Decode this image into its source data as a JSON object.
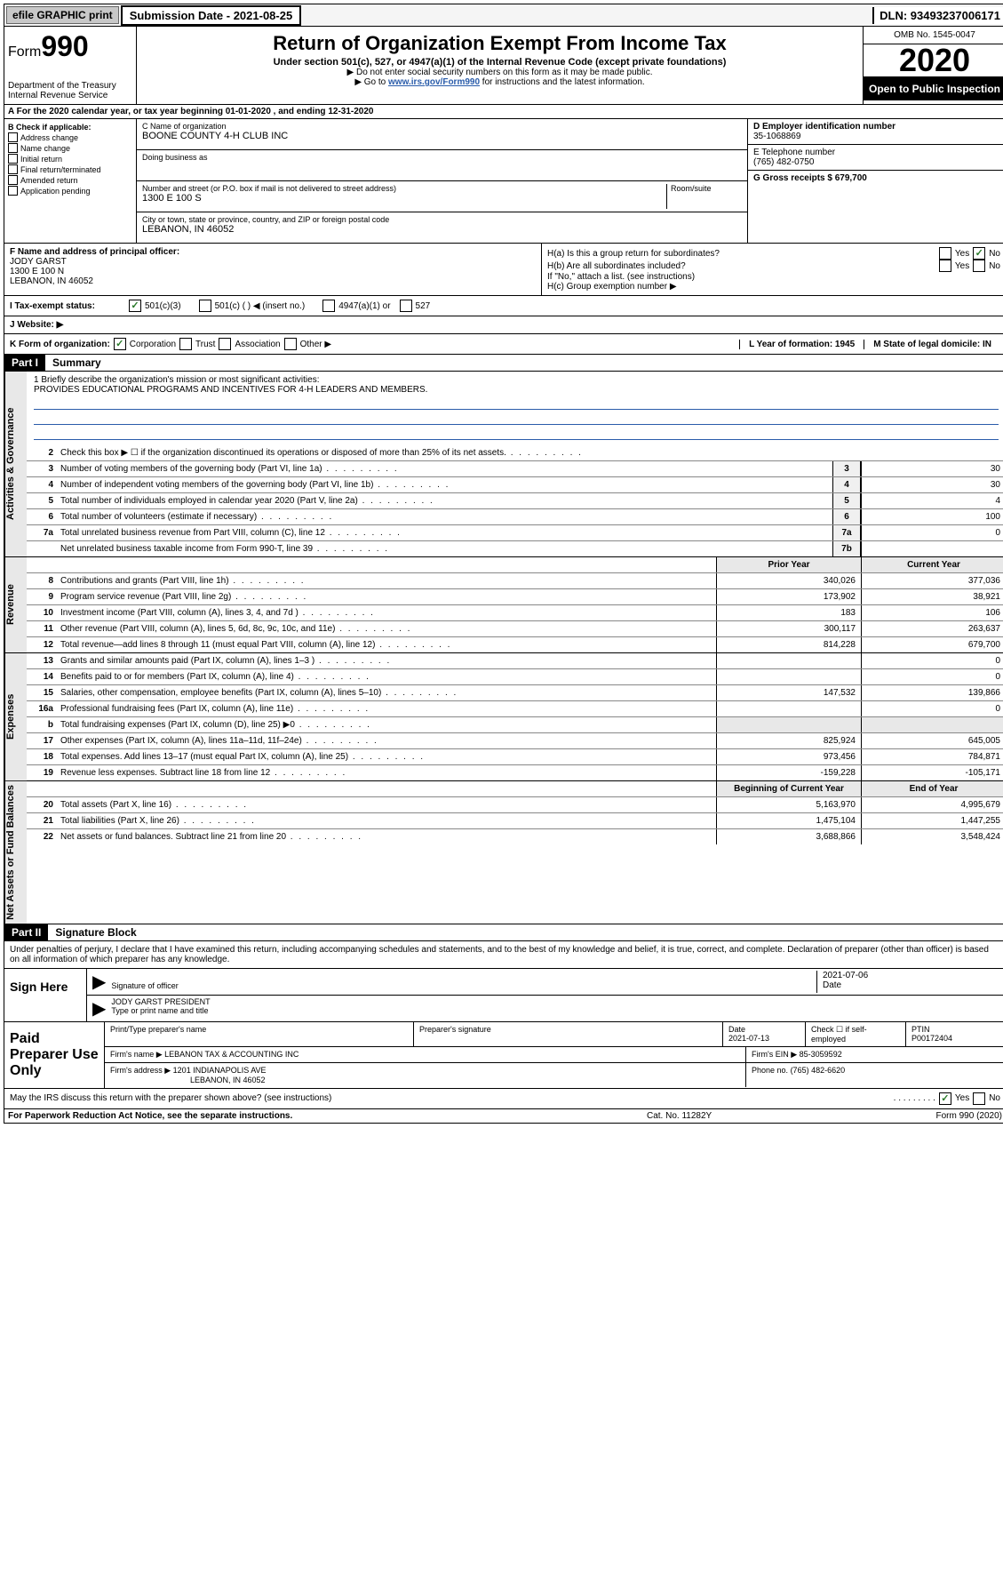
{
  "topbar": {
    "efile": "efile GRAPHIC print",
    "submission_label": "Submission Date - 2021-08-25",
    "dln": "DLN: 93493237006171"
  },
  "header": {
    "form_prefix": "Form",
    "form_number": "990",
    "dept": "Department of the Treasury",
    "irs": "Internal Revenue Service",
    "title": "Return of Organization Exempt From Income Tax",
    "subtitle": "Under section 501(c), 527, or 4947(a)(1) of the Internal Revenue Code (except private foundations)",
    "note1": "▶ Do not enter social security numbers on this form as it may be made public.",
    "note2_pre": "▶ Go to ",
    "note2_link": "www.irs.gov/Form990",
    "note2_post": " for instructions and the latest information.",
    "omb": "OMB No. 1545-0047",
    "year": "2020",
    "open": "Open to Public Inspection"
  },
  "period": "A For the 2020 calendar year, or tax year beginning 01-01-2020    , and ending 12-31-2020",
  "colB": {
    "label": "B Check if applicable:",
    "items": [
      "Address change",
      "Name change",
      "Initial return",
      "Final return/terminated",
      "Amended return",
      "Application pending"
    ]
  },
  "colC": {
    "name_label": "C Name of organization",
    "name": "BOONE COUNTY 4-H CLUB INC",
    "dba_label": "Doing business as",
    "street_label": "Number and street (or P.O. box if mail is not delivered to street address)",
    "room_label": "Room/suite",
    "street": "1300 E 100 S",
    "city_label": "City or town, state or province, country, and ZIP or foreign postal code",
    "city": "LEBANON, IN  46052"
  },
  "colD": {
    "ein_label": "D Employer identification number",
    "ein": "35-1068869",
    "phone_label": "E Telephone number",
    "phone": "(765) 482-0750",
    "gross_label": "G Gross receipts $ 679,700"
  },
  "rowF": {
    "f_label": "F Name and address of principal officer:",
    "f_name": "JODY GARST",
    "f_street": "1300 E 100 N",
    "f_city": "LEBANON, IN  46052",
    "ha": "H(a)  Is this a group return for subordinates?",
    "hb": "H(b)  Are all subordinates included?",
    "hb_note": "If \"No,\" attach a list. (see instructions)",
    "hc": "H(c)  Group exemption number ▶"
  },
  "statusRow": {
    "i": "I  Tax-exempt status:",
    "s1": "501(c)(3)",
    "s2": "501(c) (   ) ◀ (insert no.)",
    "s3": "4947(a)(1) or",
    "s4": "527"
  },
  "website": "J  Website: ▶",
  "kRow": {
    "k": "K Form of organization:",
    "corp": "Corporation",
    "trust": "Trust",
    "assoc": "Association",
    "other": "Other ▶",
    "l": "L Year of formation: 1945",
    "m": "M State of legal domicile: IN"
  },
  "part1": {
    "label": "Part I",
    "title": "Summary"
  },
  "mission": {
    "q": "1  Briefly describe the organization's mission or most significant activities:",
    "text": "PROVIDES EDUCATIONAL PROGRAMS AND INCENTIVES FOR 4-H LEADERS AND MEMBERS."
  },
  "sideLabels": {
    "gov": "Activities & Governance",
    "rev": "Revenue",
    "exp": "Expenses",
    "net": "Net Assets or Fund Balances"
  },
  "govLines": [
    {
      "n": "2",
      "d": "Check this box ▶ ☐  if the organization discontinued its operations or disposed of more than 25% of its net assets.",
      "nc": "",
      "v": ""
    },
    {
      "n": "3",
      "d": "Number of voting members of the governing body (Part VI, line 1a)",
      "nc": "3",
      "v": "30"
    },
    {
      "n": "4",
      "d": "Number of independent voting members of the governing body (Part VI, line 1b)",
      "nc": "4",
      "v": "30"
    },
    {
      "n": "5",
      "d": "Total number of individuals employed in calendar year 2020 (Part V, line 2a)",
      "nc": "5",
      "v": "4"
    },
    {
      "n": "6",
      "d": "Total number of volunteers (estimate if necessary)",
      "nc": "6",
      "v": "100"
    },
    {
      "n": "7a",
      "d": "Total unrelated business revenue from Part VIII, column (C), line 12",
      "nc": "7a",
      "v": "0"
    },
    {
      "n": "",
      "d": "Net unrelated business taxable income from Form 990-T, line 39",
      "nc": "7b",
      "v": ""
    }
  ],
  "yearHdr": {
    "prior": "Prior Year",
    "current": "Current Year"
  },
  "revLines": [
    {
      "n": "8",
      "d": "Contributions and grants (Part VIII, line 1h)",
      "p": "340,026",
      "c": "377,036"
    },
    {
      "n": "9",
      "d": "Program service revenue (Part VIII, line 2g)",
      "p": "173,902",
      "c": "38,921"
    },
    {
      "n": "10",
      "d": "Investment income (Part VIII, column (A), lines 3, 4, and 7d )",
      "p": "183",
      "c": "106"
    },
    {
      "n": "11",
      "d": "Other revenue (Part VIII, column (A), lines 5, 6d, 8c, 9c, 10c, and 11e)",
      "p": "300,117",
      "c": "263,637"
    },
    {
      "n": "12",
      "d": "Total revenue—add lines 8 through 11 (must equal Part VIII, column (A), line 12)",
      "p": "814,228",
      "c": "679,700"
    }
  ],
  "expLines": [
    {
      "n": "13",
      "d": "Grants and similar amounts paid (Part IX, column (A), lines 1–3 )",
      "p": "",
      "c": "0"
    },
    {
      "n": "14",
      "d": "Benefits paid to or for members (Part IX, column (A), line 4)",
      "p": "",
      "c": "0"
    },
    {
      "n": "15",
      "d": "Salaries, other compensation, employee benefits (Part IX, column (A), lines 5–10)",
      "p": "147,532",
      "c": "139,866"
    },
    {
      "n": "16a",
      "d": "Professional fundraising fees (Part IX, column (A), line 11e)",
      "p": "",
      "c": "0"
    },
    {
      "n": "b",
      "d": "Total fundraising expenses (Part IX, column (D), line 25) ▶0",
      "p": "",
      "c": ""
    },
    {
      "n": "17",
      "d": "Other expenses (Part IX, column (A), lines 11a–11d, 11f–24e)",
      "p": "825,924",
      "c": "645,005"
    },
    {
      "n": "18",
      "d": "Total expenses. Add lines 13–17 (must equal Part IX, column (A), line 25)",
      "p": "973,456",
      "c": "784,871"
    },
    {
      "n": "19",
      "d": "Revenue less expenses. Subtract line 18 from line 12",
      "p": "-159,228",
      "c": "-105,171"
    }
  ],
  "netHdr": {
    "begin": "Beginning of Current Year",
    "end": "End of Year"
  },
  "netLines": [
    {
      "n": "20",
      "d": "Total assets (Part X, line 16)",
      "p": "5,163,970",
      "c": "4,995,679"
    },
    {
      "n": "21",
      "d": "Total liabilities (Part X, line 26)",
      "p": "1,475,104",
      "c": "1,447,255"
    },
    {
      "n": "22",
      "d": "Net assets or fund balances. Subtract line 21 from line 20",
      "p": "3,688,866",
      "c": "3,548,424"
    }
  ],
  "part2": {
    "label": "Part II",
    "title": "Signature Block"
  },
  "sig": {
    "intro": "Under penalties of perjury, I declare that I have examined this return, including accompanying schedules and statements, and to the best of my knowledge and belief, it is true, correct, and complete. Declaration of preparer (other than officer) is based on all information of which preparer has any knowledge.",
    "sign_here": "Sign Here",
    "sig_officer": "Signature of officer",
    "date": "2021-07-06",
    "date_label": "Date",
    "name": "JODY GARST  PRESIDENT",
    "name_label": "Type or print name and title"
  },
  "paid": {
    "label": "Paid Preparer Use Only",
    "h1": "Print/Type preparer's name",
    "h2": "Preparer's signature",
    "h3": "Date",
    "h3v": "2021-07-13",
    "h4": "Check ☐ if self-employed",
    "h5": "PTIN",
    "h5v": "P00172404",
    "firm_name_l": "Firm's name    ▶",
    "firm_name": "LEBANON TAX & ACCOUNTING INC",
    "firm_ein_l": "Firm's EIN ▶",
    "firm_ein": "85-3059592",
    "firm_addr_l": "Firm's address ▶",
    "firm_addr": "1201 INDIANAPOLIS AVE",
    "firm_city": "LEBANON, IN  46052",
    "phone_l": "Phone no.",
    "phone": "(765) 482-6620"
  },
  "discuss": "May the IRS discuss this return with the preparer shown above? (see instructions)",
  "yes": "Yes",
  "no": "No",
  "footer": {
    "f1": "For Paperwork Reduction Act Notice, see the separate instructions.",
    "f2": "Cat. No. 11282Y",
    "f3": "Form 990 (2020)"
  }
}
